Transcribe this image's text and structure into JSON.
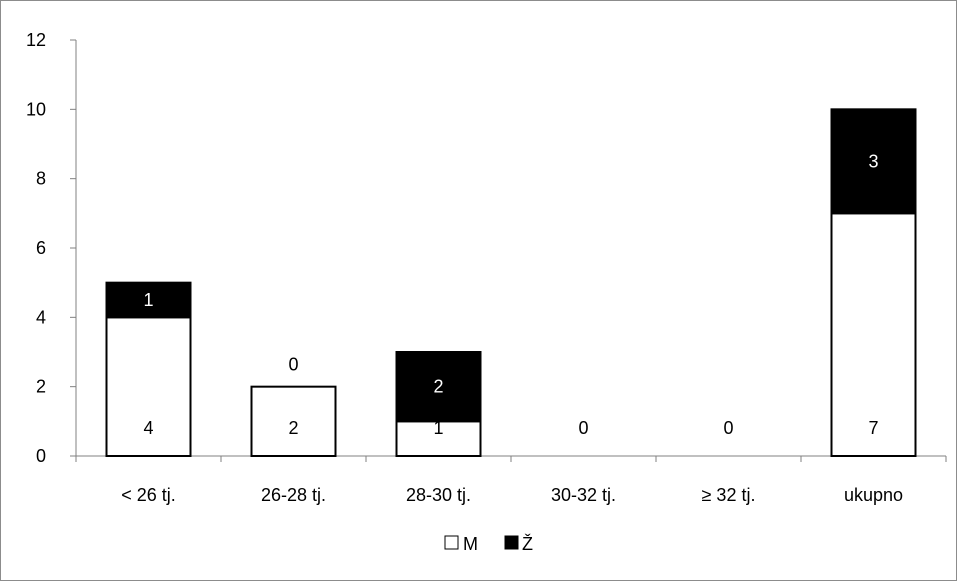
{
  "chart_data": {
    "type": "bar",
    "stacked": true,
    "categories": [
      "< 26 tj.",
      "26-28 tj.",
      "28-30 tj.",
      "30-32 tj.",
      "≥ 32 tj.",
      "ukupno"
    ],
    "series": [
      {
        "name": "M",
        "values": [
          4,
          2,
          1,
          0,
          0,
          7
        ],
        "color": "#ffffff"
      },
      {
        "name": "Ž",
        "values": [
          1,
          0,
          2,
          0,
          0,
          3
        ],
        "color": "#000000"
      }
    ],
    "data_labels": {
      "M": [
        "4",
        "2",
        "1",
        "0",
        "0",
        "7"
      ],
      "Ž": [
        "1",
        "0",
        "2",
        "",
        "",
        "3"
      ]
    },
    "ylim": [
      0,
      12
    ],
    "yticks": [
      "0",
      "2",
      "4",
      "6",
      "8",
      "10",
      "12"
    ],
    "title": "",
    "xlabel": "",
    "ylabel": "",
    "grid": false,
    "legend": "bottom"
  }
}
